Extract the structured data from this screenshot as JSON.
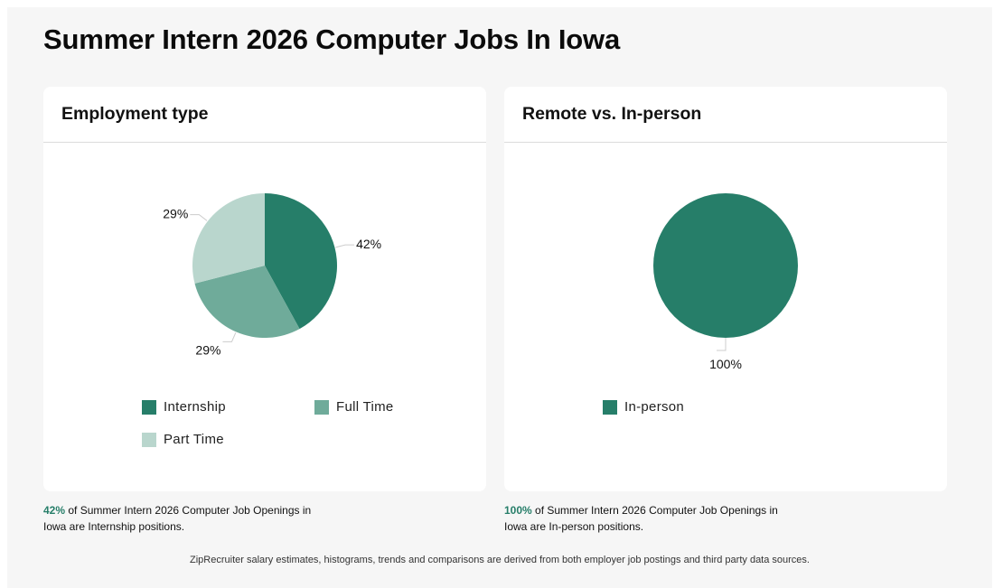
{
  "page": {
    "title": "Summer Intern 2026 Computer Jobs In Iowa",
    "footer": "ZipRecruiter salary estimates, histograms, trends and comparisons are derived from both employer job postings and third party data sources."
  },
  "cards": [
    {
      "title": "Employment type",
      "caption": {
        "pct": "42%",
        "text": " of Summer Intern 2026 Computer Job Openings in Iowa are Internship positions."
      }
    },
    {
      "title": "Remote vs. In-person",
      "caption": {
        "pct": "100%",
        "text": " of Summer Intern 2026 Computer Job Openings in Iowa are In-person positions."
      }
    }
  ],
  "chart_data": [
    {
      "type": "pie",
      "title": "Employment type",
      "slices": [
        {
          "label": "Internship",
          "value": 42,
          "display": "42%",
          "color": "#267e69"
        },
        {
          "label": "Full Time",
          "value": 29,
          "display": "29%",
          "color": "#6fab9a"
        },
        {
          "label": "Part Time",
          "value": 29,
          "display": "29%",
          "color": "#b9d6cd"
        }
      ],
      "legend": "bottom"
    },
    {
      "type": "pie",
      "title": "Remote vs. In-person",
      "slices": [
        {
          "label": "In-person",
          "value": 100,
          "display": "100%",
          "color": "#267e69"
        }
      ],
      "legend": "bottom"
    }
  ]
}
